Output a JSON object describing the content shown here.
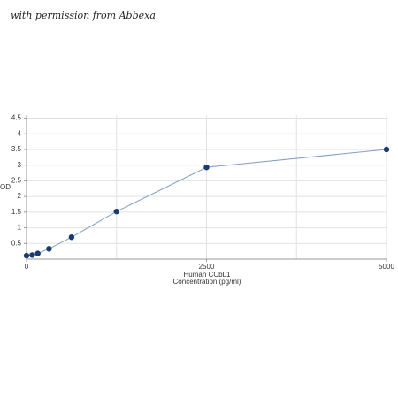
{
  "watermark": "with permission from Abbexa",
  "chart_data": {
    "type": "line",
    "xlabel": [
      "Human CCbL1",
      "Concentration (pg/ml)"
    ],
    "ylabel": "OD",
    "x": [
      0,
      78,
      156,
      312,
      625,
      1250,
      2500,
      5000
    ],
    "series": [
      {
        "name": "Human CCbL1",
        "color": "#1a3a70",
        "line_color": "#7f9ec8",
        "values": [
          0.11,
          0.13,
          0.18,
          0.33,
          0.7,
          1.52,
          2.93,
          3.5
        ]
      }
    ],
    "xlim": [
      0,
      5000
    ],
    "xticks": [
      0,
      2500,
      5000
    ],
    "x_gridlines": [
      1250,
      2500,
      3750,
      5000
    ],
    "ylim": [
      0,
      4.6
    ],
    "yticks": [
      0.5,
      1,
      1.5,
      2,
      2.5,
      3,
      3.5,
      4,
      4.5
    ],
    "grid": true
  }
}
